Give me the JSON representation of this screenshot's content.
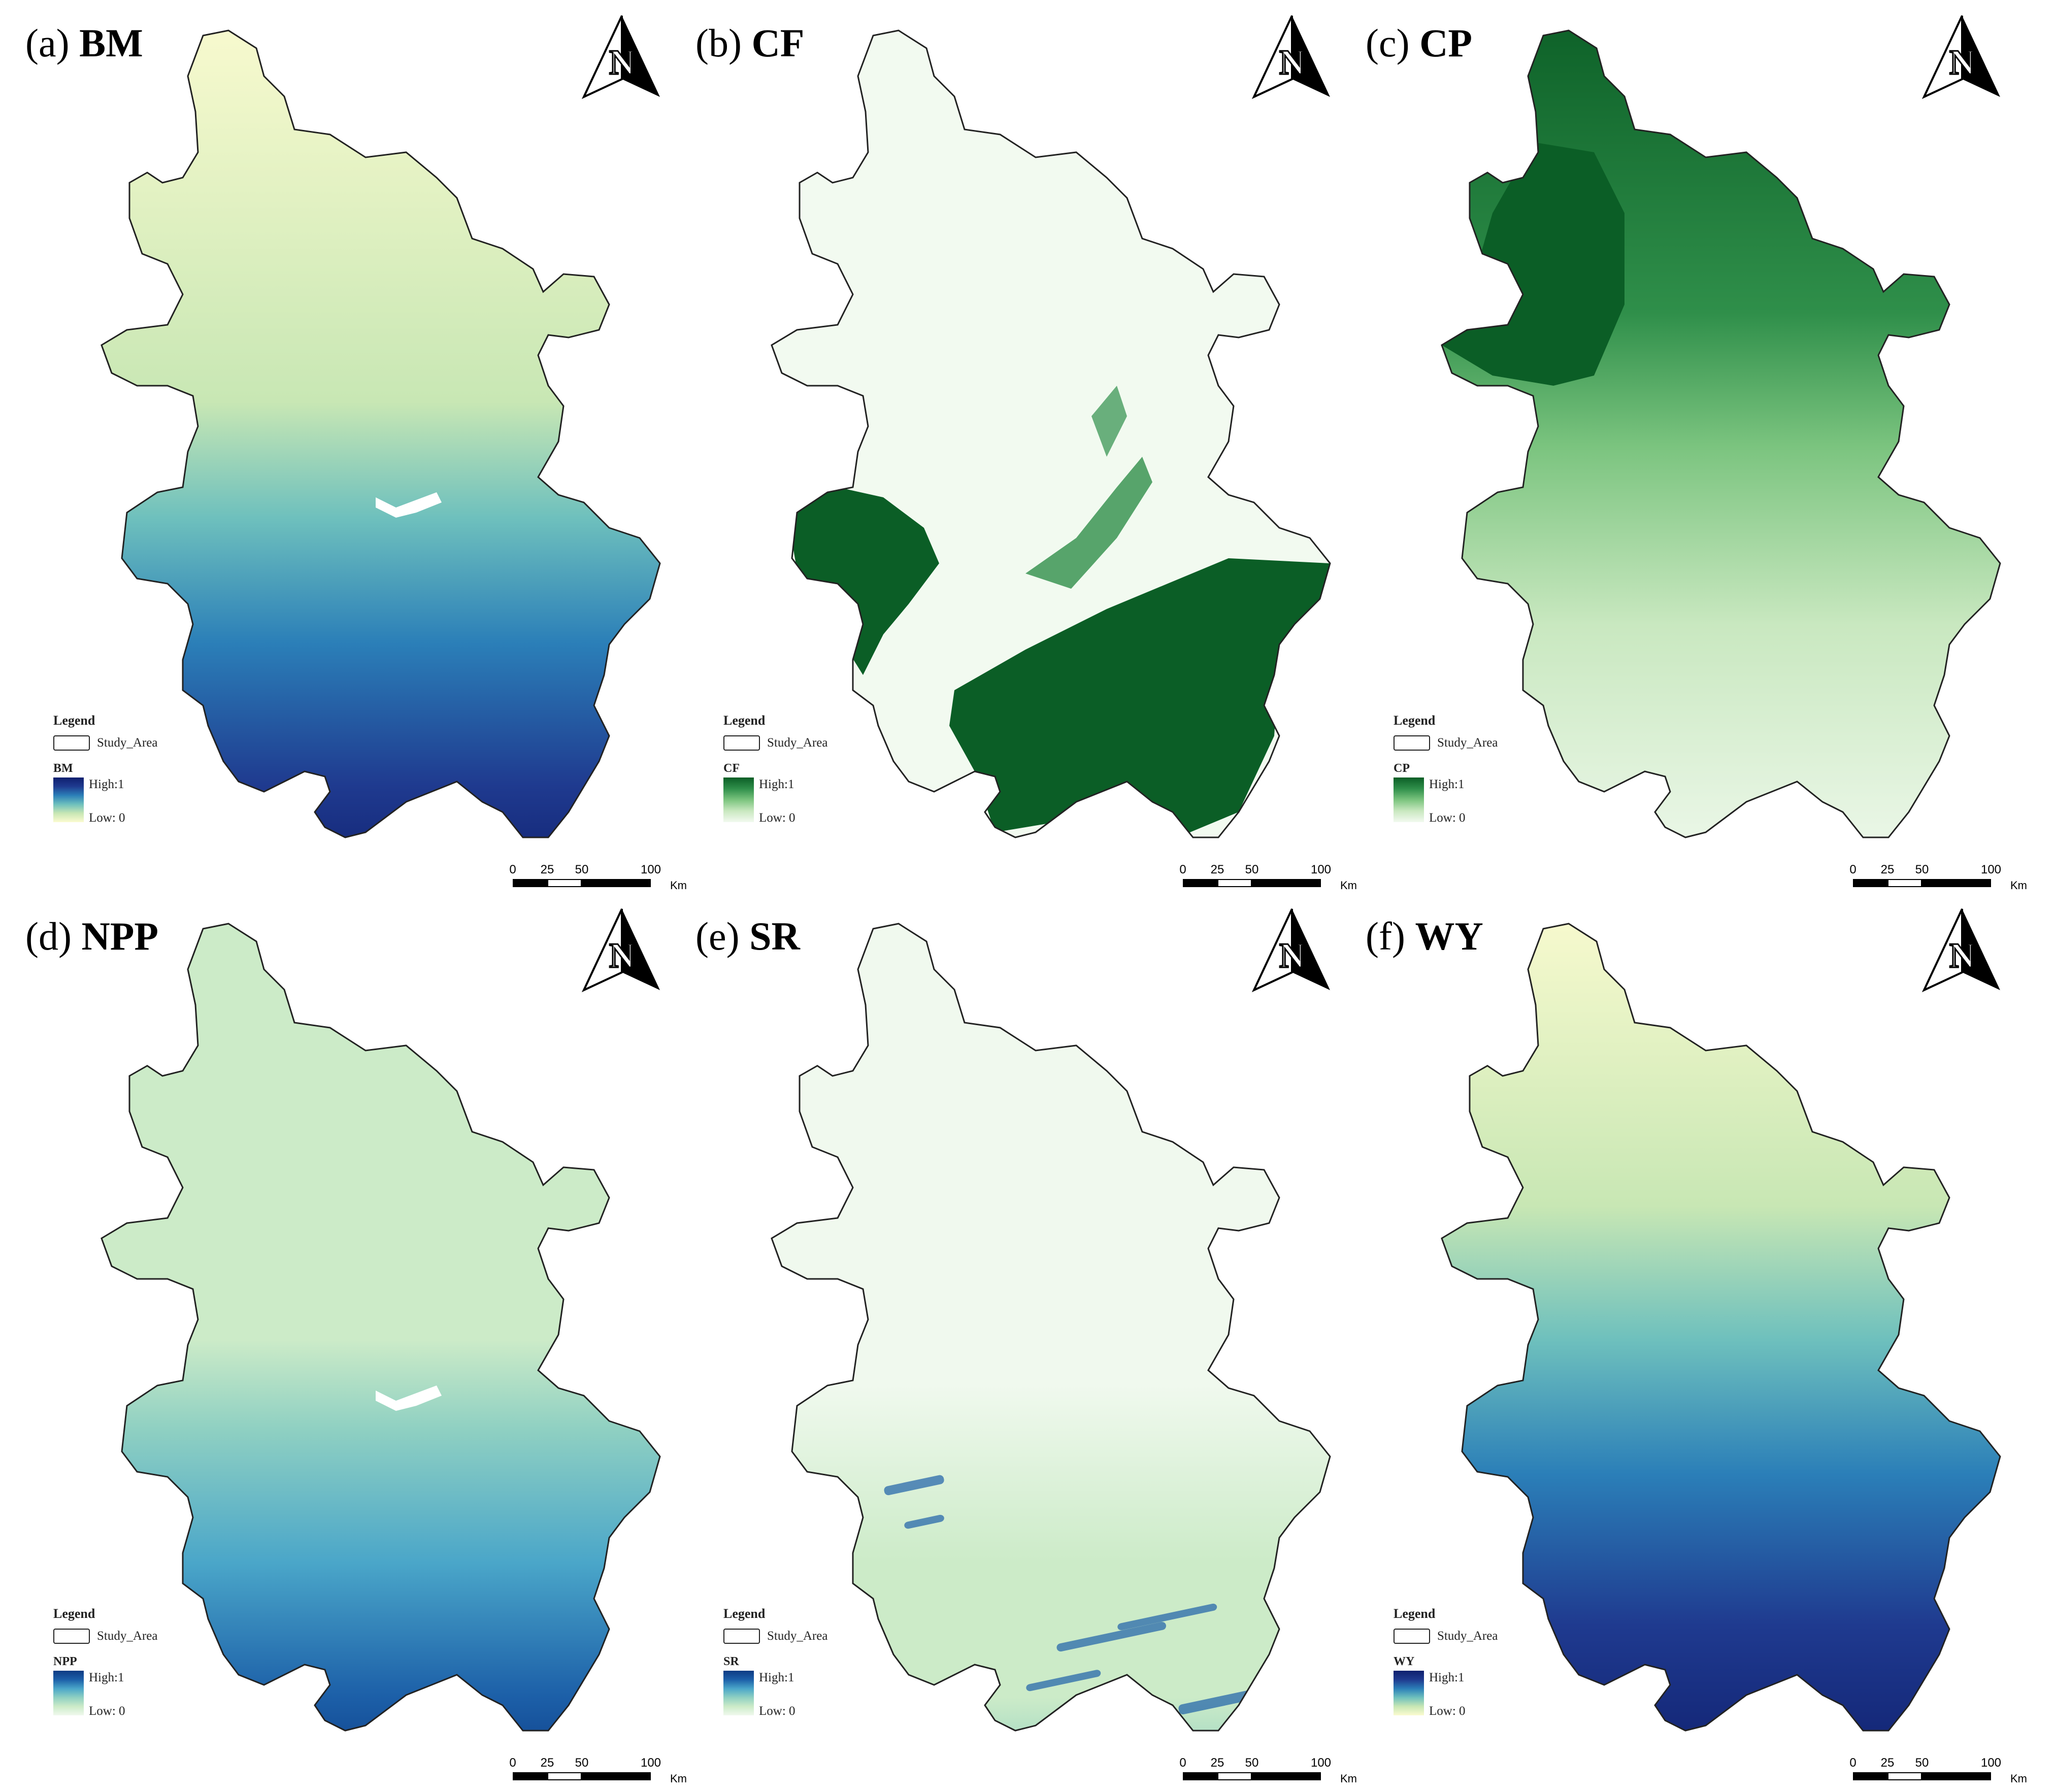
{
  "panels": [
    {
      "paren": "(a)",
      "abbr": "BM",
      "legend_var": "BM",
      "ramp": "yg_blue"
    },
    {
      "paren": "(b)",
      "abbr": "CF",
      "legend_var": "CF",
      "ramp": "green"
    },
    {
      "paren": "(c)",
      "abbr": "CP",
      "legend_var": "CP",
      "ramp": "green"
    },
    {
      "paren": "(d)",
      "abbr": "NPP",
      "legend_var": "NPP",
      "ramp": "teal_blue"
    },
    {
      "paren": "(e)",
      "abbr": "SR",
      "legend_var": "SR",
      "ramp": "teal_blue"
    },
    {
      "paren": "(f)",
      "abbr": "WY",
      "legend_var": "WY",
      "ramp": "yg_blue"
    }
  ],
  "legend": {
    "title": "Legend",
    "study_area": "Study_Area",
    "high": "High:1",
    "low": "Low: 0"
  },
  "scalebar": {
    "ticks": [
      "0",
      "25",
      "50",
      "100"
    ],
    "unit": "Km"
  },
  "north_arrow": {
    "label": "N",
    "icon": "north-arrow-icon"
  },
  "colors": {
    "yg_blue": [
      "#fbfbd0",
      "#c8e7b4",
      "#6ec0bd",
      "#2b7fb8",
      "#1f3a8f",
      "#0f1f6e"
    ],
    "green": [
      "#f2faf0",
      "#c9e8c0",
      "#7bc47f",
      "#2f8f4a",
      "#0b5e26"
    ],
    "teal_blue": [
      "#f0f9ee",
      "#ccebc8",
      "#8fd0c2",
      "#4aa6c9",
      "#1c5fa8",
      "#0d3b84"
    ],
    "outline": "#222222"
  }
}
